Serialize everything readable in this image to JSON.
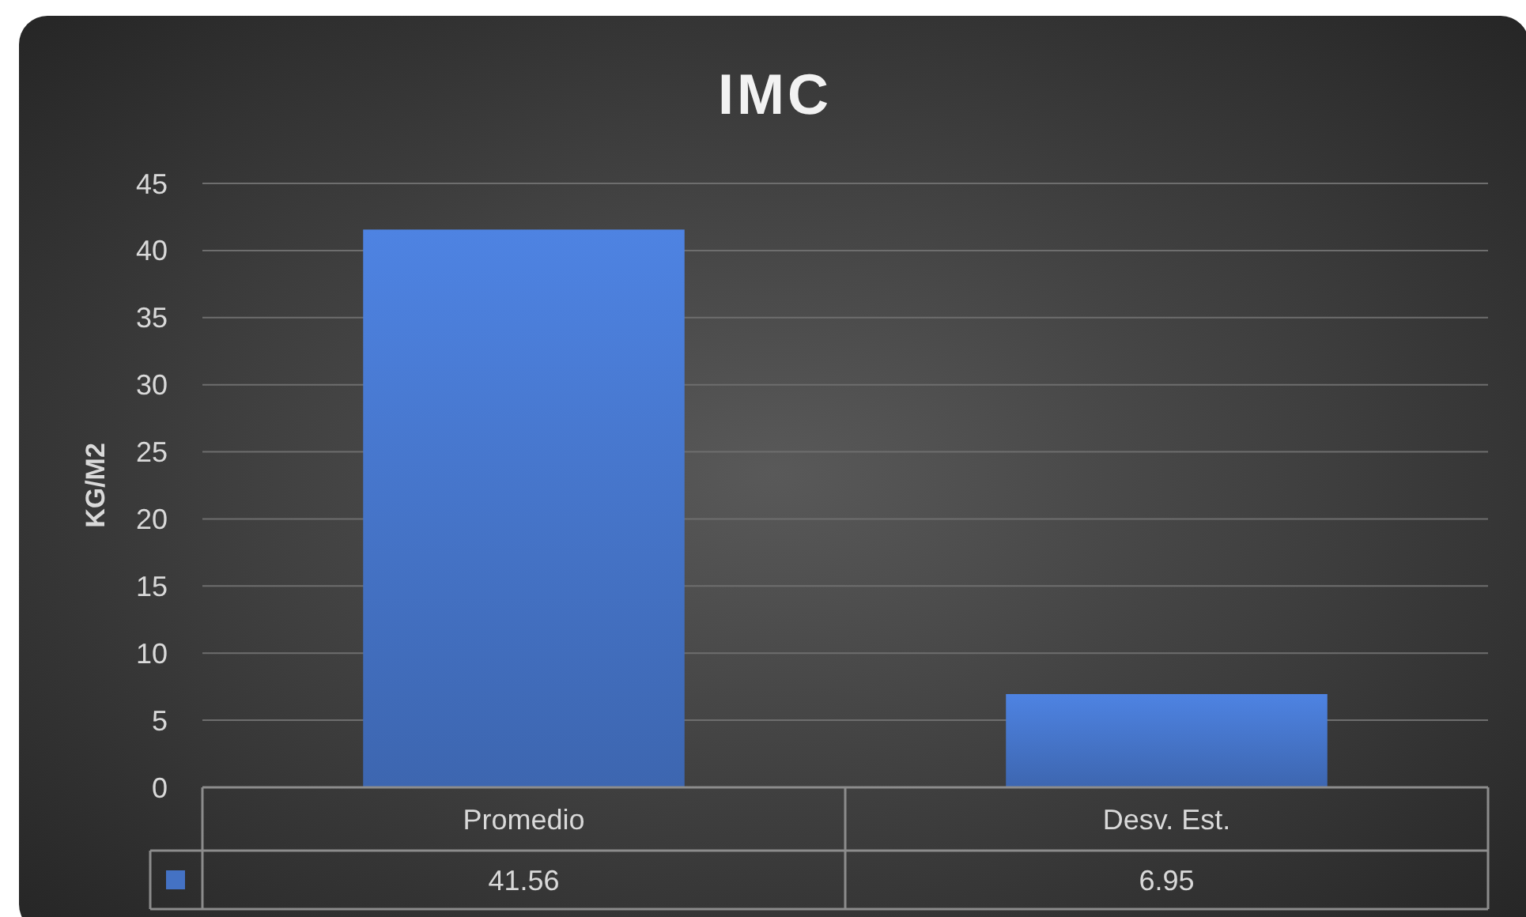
{
  "chart_data": {
    "type": "bar",
    "title": "IMC",
    "ylabel": "KG/M2",
    "categories": [
      "Promedio",
      "Desv. Est."
    ],
    "series": [
      {
        "color": "#4472c4",
        "values": [
          41.56,
          6.95
        ]
      }
    ],
    "ylim": [
      0,
      45
    ],
    "yticks": [
      0,
      5,
      10,
      15,
      20,
      25,
      30,
      35,
      40,
      45
    ],
    "grid": "y",
    "data_labels": true
  }
}
